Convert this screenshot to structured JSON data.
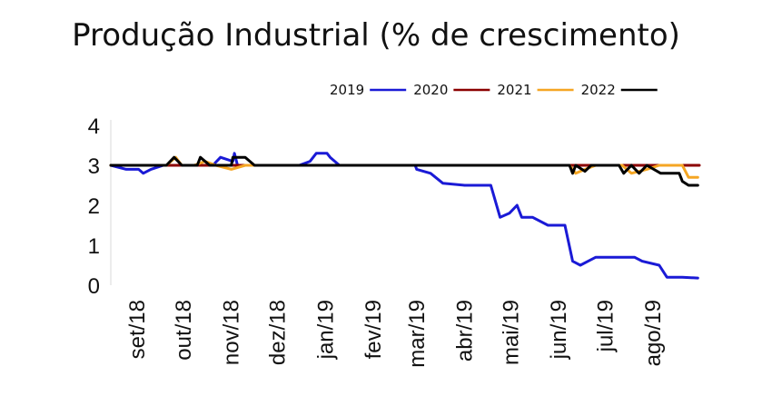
{
  "chart_data": {
    "type": "line",
    "title": "Produção Industrial (% de crescimento)",
    "xlabel": "",
    "ylabel": "",
    "ylim": [
      0,
      4
    ],
    "yticks": [
      "0",
      "1",
      "2",
      "3",
      "4"
    ],
    "xticks": [
      "set/18",
      "out/18",
      "nov/18",
      "dez/18",
      "jan/19",
      "fev/19",
      "mar/19",
      "abr/19",
      "mai/19",
      "jun/19",
      "jul/19",
      "ago/19"
    ],
    "xlim": [
      "2018-08-15",
      "2019-08-31"
    ],
    "legend_position": "top-right",
    "grid": false,
    "series": [
      {
        "name": "2019",
        "color": "#1a1ad6",
        "points": [
          [
            "2018-08-15",
            3.0
          ],
          [
            "2018-08-25",
            2.9
          ],
          [
            "2018-09-02",
            2.9
          ],
          [
            "2018-09-05",
            2.8
          ],
          [
            "2018-09-10",
            2.9
          ],
          [
            "2018-09-18",
            3.0
          ],
          [
            "2018-10-20",
            3.0
          ],
          [
            "2018-10-25",
            3.2
          ],
          [
            "2018-11-02",
            3.1
          ],
          [
            "2018-11-03",
            3.3
          ],
          [
            "2018-11-05",
            3.0
          ],
          [
            "2018-12-15",
            3.0
          ],
          [
            "2018-12-22",
            3.1
          ],
          [
            "2018-12-26",
            3.3
          ],
          [
            "2019-01-02",
            3.3
          ],
          [
            "2019-01-04",
            3.2
          ],
          [
            "2019-01-10",
            3.0
          ],
          [
            "2019-02-28",
            3.0
          ],
          [
            "2019-03-01",
            2.9
          ],
          [
            "2019-03-10",
            2.8
          ],
          [
            "2019-03-18",
            2.55
          ],
          [
            "2019-04-01",
            2.5
          ],
          [
            "2019-04-18",
            2.5
          ],
          [
            "2019-04-24",
            1.7
          ],
          [
            "2019-04-30",
            1.8
          ],
          [
            "2019-05-05",
            2.0
          ],
          [
            "2019-05-08",
            1.7
          ],
          [
            "2019-05-15",
            1.7
          ],
          [
            "2019-05-25",
            1.5
          ],
          [
            "2019-06-05",
            1.5
          ],
          [
            "2019-06-10",
            0.6
          ],
          [
            "2019-06-15",
            0.5
          ],
          [
            "2019-06-20",
            0.6
          ],
          [
            "2019-06-25",
            0.7
          ],
          [
            "2019-07-20",
            0.7
          ],
          [
            "2019-07-25",
            0.6
          ],
          [
            "2019-08-05",
            0.5
          ],
          [
            "2019-08-10",
            0.2
          ],
          [
            "2019-08-20",
            0.2
          ],
          [
            "2019-08-30",
            0.18
          ]
        ]
      },
      {
        "name": "2020",
        "color": "#8b0000",
        "points": [
          [
            "2018-08-15",
            3.0
          ],
          [
            "2019-08-31",
            3.0
          ]
        ]
      },
      {
        "name": "2021",
        "color": "#f5a623",
        "points": [
          [
            "2018-08-15",
            3.0
          ],
          [
            "2018-09-20",
            3.0
          ],
          [
            "2018-09-26",
            3.2
          ],
          [
            "2018-09-30",
            3.0
          ],
          [
            "2018-10-08",
            3.0
          ],
          [
            "2018-10-15",
            3.1
          ],
          [
            "2018-10-22",
            3.0
          ],
          [
            "2018-11-01",
            2.9
          ],
          [
            "2018-11-10",
            3.0
          ],
          [
            "2019-06-08",
            3.0
          ],
          [
            "2019-06-12",
            2.8
          ],
          [
            "2019-06-18",
            2.9
          ],
          [
            "2019-06-25",
            3.0
          ],
          [
            "2019-07-12",
            3.0
          ],
          [
            "2019-07-18",
            2.8
          ],
          [
            "2019-07-28",
            2.9
          ],
          [
            "2019-08-05",
            3.0
          ],
          [
            "2019-08-20",
            3.0
          ],
          [
            "2019-08-24",
            2.7
          ],
          [
            "2019-08-30",
            2.7
          ]
        ]
      },
      {
        "name": "2022",
        "color": "#000000",
        "points": [
          [
            "2018-08-15",
            3.0
          ],
          [
            "2018-09-20",
            3.0
          ],
          [
            "2018-09-25",
            3.2
          ],
          [
            "2018-09-30",
            3.0
          ],
          [
            "2018-10-10",
            3.0
          ],
          [
            "2018-10-12",
            3.2
          ],
          [
            "2018-10-18",
            3.0
          ],
          [
            "2018-11-01",
            3.0
          ],
          [
            "2018-11-02",
            3.2
          ],
          [
            "2018-11-10",
            3.2
          ],
          [
            "2018-11-16",
            3.0
          ],
          [
            "2019-06-08",
            3.0
          ],
          [
            "2019-06-10",
            2.8
          ],
          [
            "2019-06-12",
            3.0
          ],
          [
            "2019-06-18",
            2.85
          ],
          [
            "2019-06-22",
            3.0
          ],
          [
            "2019-07-10",
            3.0
          ],
          [
            "2019-07-13",
            2.8
          ],
          [
            "2019-07-18",
            3.0
          ],
          [
            "2019-07-23",
            2.8
          ],
          [
            "2019-07-28",
            3.0
          ],
          [
            "2019-08-06",
            2.8
          ],
          [
            "2019-08-18",
            2.8
          ],
          [
            "2019-08-20",
            2.6
          ],
          [
            "2019-08-24",
            2.5
          ],
          [
            "2019-08-30",
            2.5
          ]
        ]
      }
    ]
  }
}
